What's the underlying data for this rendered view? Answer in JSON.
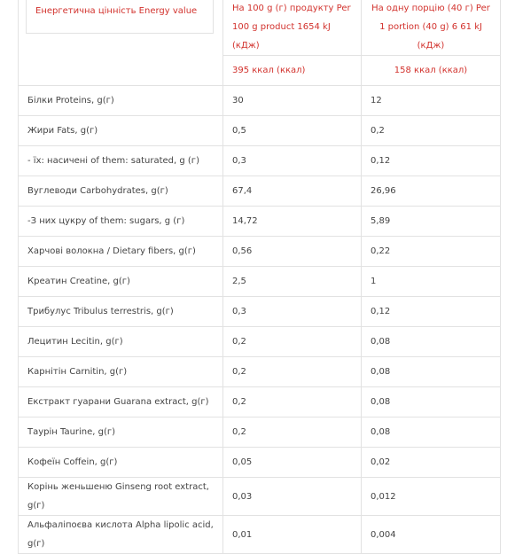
{
  "header": {
    "energy_label": "Енергетична цінність Energy value",
    "per100_label": "На 100 g (г) продукту Per 100 g product 1654 kJ (кДж)",
    "per_serving_label": "На одну порцію (40 г) Per 1 portion (40 g) 6 61 kJ (кДж)",
    "per100_kcal": "395 ккал (ккал)",
    "per_serving_kcal": "158 ккал (ккал)"
  },
  "table": {
    "rows": [
      [
        "Білки Proteins, g(г)",
        "30",
        "12"
      ],
      [
        "Жири Fats, g(г)",
        "0,5",
        "0,2"
      ],
      [
        "- їх: насичені of them: saturated, g (г)",
        "0,3",
        "0,12"
      ],
      [
        "Вуглеводи Carbohydrates, g(г)",
        "67,4",
        "26,96"
      ],
      [
        "-З них цукру of them: sugars, g (г)",
        "14,72",
        "5,89"
      ],
      [
        "Харчові волокна / Dietary fibers, g(г)",
        "0,56",
        "0,22"
      ],
      [
        "Креатин Creatine, g(г)",
        "2,5",
        "1"
      ],
      [
        "Трибулус Tribulus terrestris, g(г)",
        "0,3",
        "0,12"
      ],
      [
        "Лецитин Lecitin, g(г)",
        "0,2",
        "0,08"
      ],
      [
        "Карнітін Carnitin, g(г)",
        "0,2",
        "0,08"
      ],
      [
        "Екстракт гуарани Guarana extract, g(г)",
        "0,2",
        "0,08"
      ],
      [
        "Таурін Taurine, g(г)",
        "0,2",
        "0,08"
      ],
      [
        "Кофеїн Coffein, g(г)",
        "0,05",
        "0,02"
      ],
      [
        "Корінь женьшеню Ginseng root extract, g(г)",
        "0,03",
        "0,012"
      ],
      [
        "Альфаліпоєва кислота Alpha lipolic acid, g(г)",
        "0,01",
        "0,004"
      ]
    ]
  }
}
